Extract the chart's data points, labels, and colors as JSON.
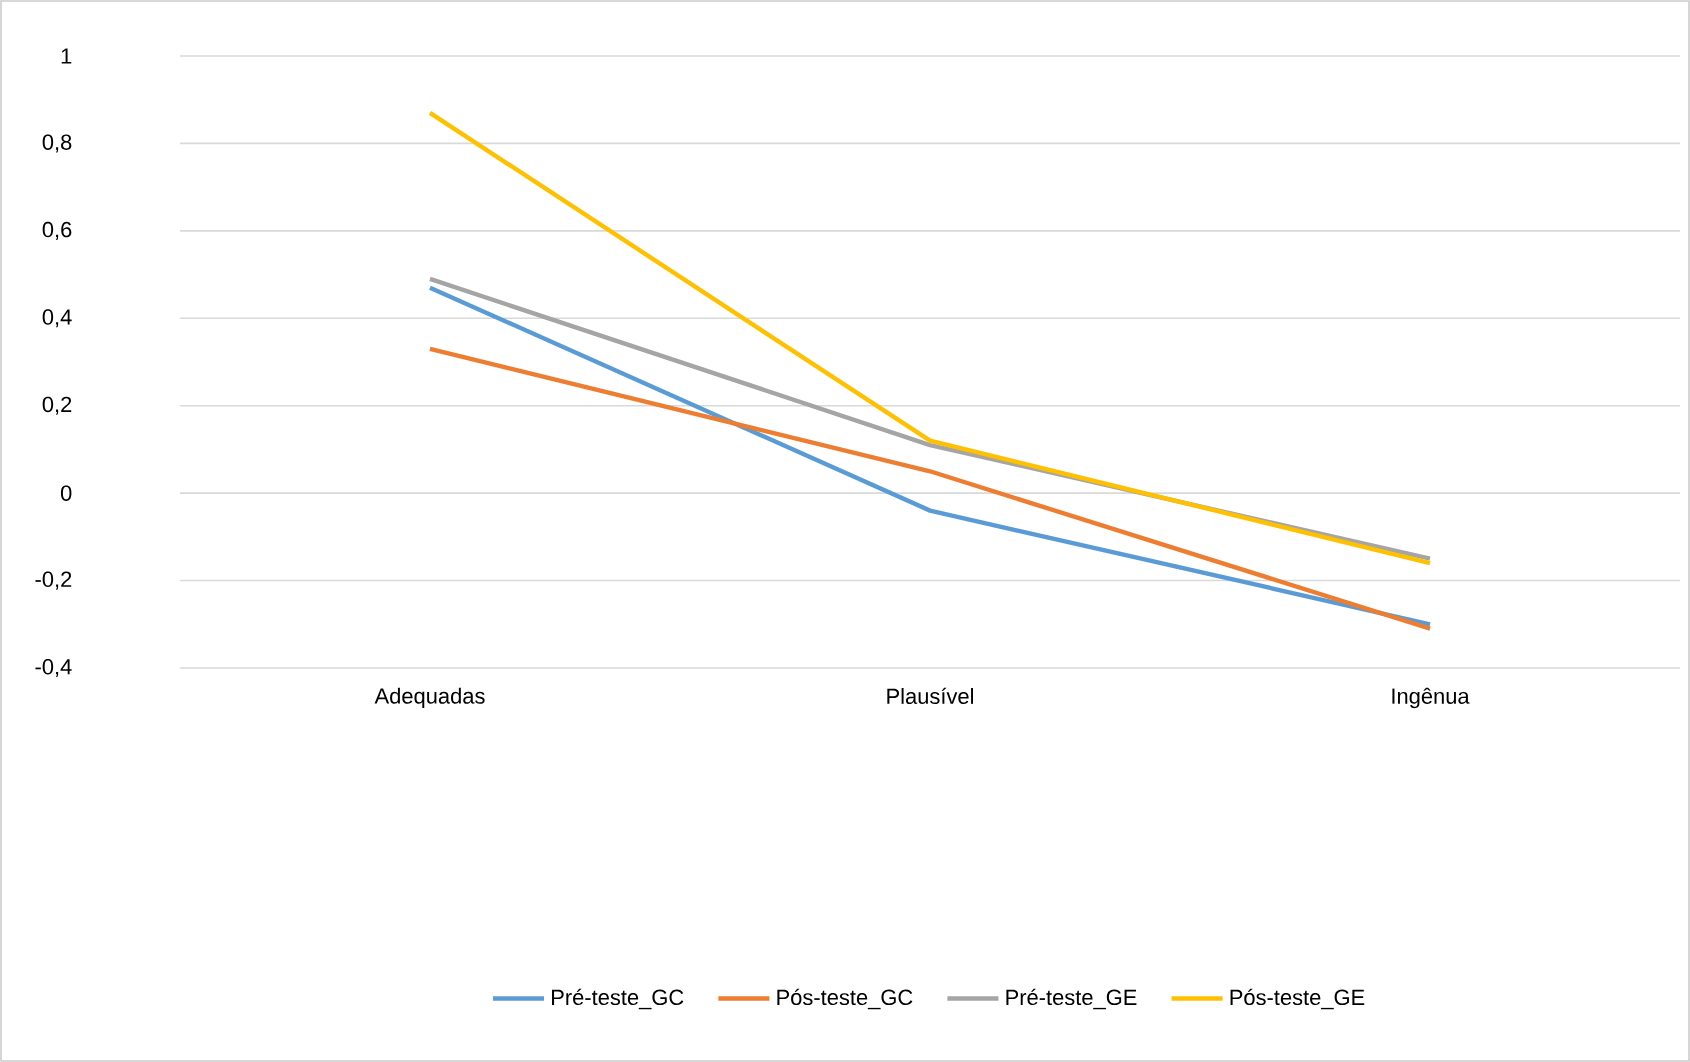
{
  "chart_data": {
    "type": "line",
    "categories": [
      "Adequadas",
      "Plausível",
      "Ingênua"
    ],
    "series": [
      {
        "name": "Pré-teste_GC",
        "color": "#5b9bd5",
        "values": [
          0.47,
          -0.04,
          -0.3
        ]
      },
      {
        "name": "Pós-teste_GC",
        "color": "#ed7d31",
        "values": [
          0.33,
          0.05,
          -0.31
        ]
      },
      {
        "name": "Pré-teste_GE",
        "color": "#a5a5a5",
        "values": [
          0.49,
          0.11,
          -0.15
        ]
      },
      {
        "name": "Pós-teste_GE",
        "color": "#ffc000",
        "values": [
          0.87,
          0.12,
          -0.16
        ]
      }
    ],
    "ylim": [
      -0.4,
      1
    ],
    "yticks": [
      {
        "value": -0.4,
        "label": "-0,4"
      },
      {
        "value": -0.2,
        "label": "-0,2"
      },
      {
        "value": 0,
        "label": "0"
      },
      {
        "value": 0.2,
        "label": "0,2"
      },
      {
        "value": 0.4,
        "label": "0,4"
      },
      {
        "value": 0.6,
        "label": "0,6"
      },
      {
        "value": 0.8,
        "label": "0,8"
      },
      {
        "value": 1,
        "label": "1"
      }
    ],
    "grid": "y",
    "legend": "bottom",
    "marker": "none",
    "line_style": "solid"
  }
}
